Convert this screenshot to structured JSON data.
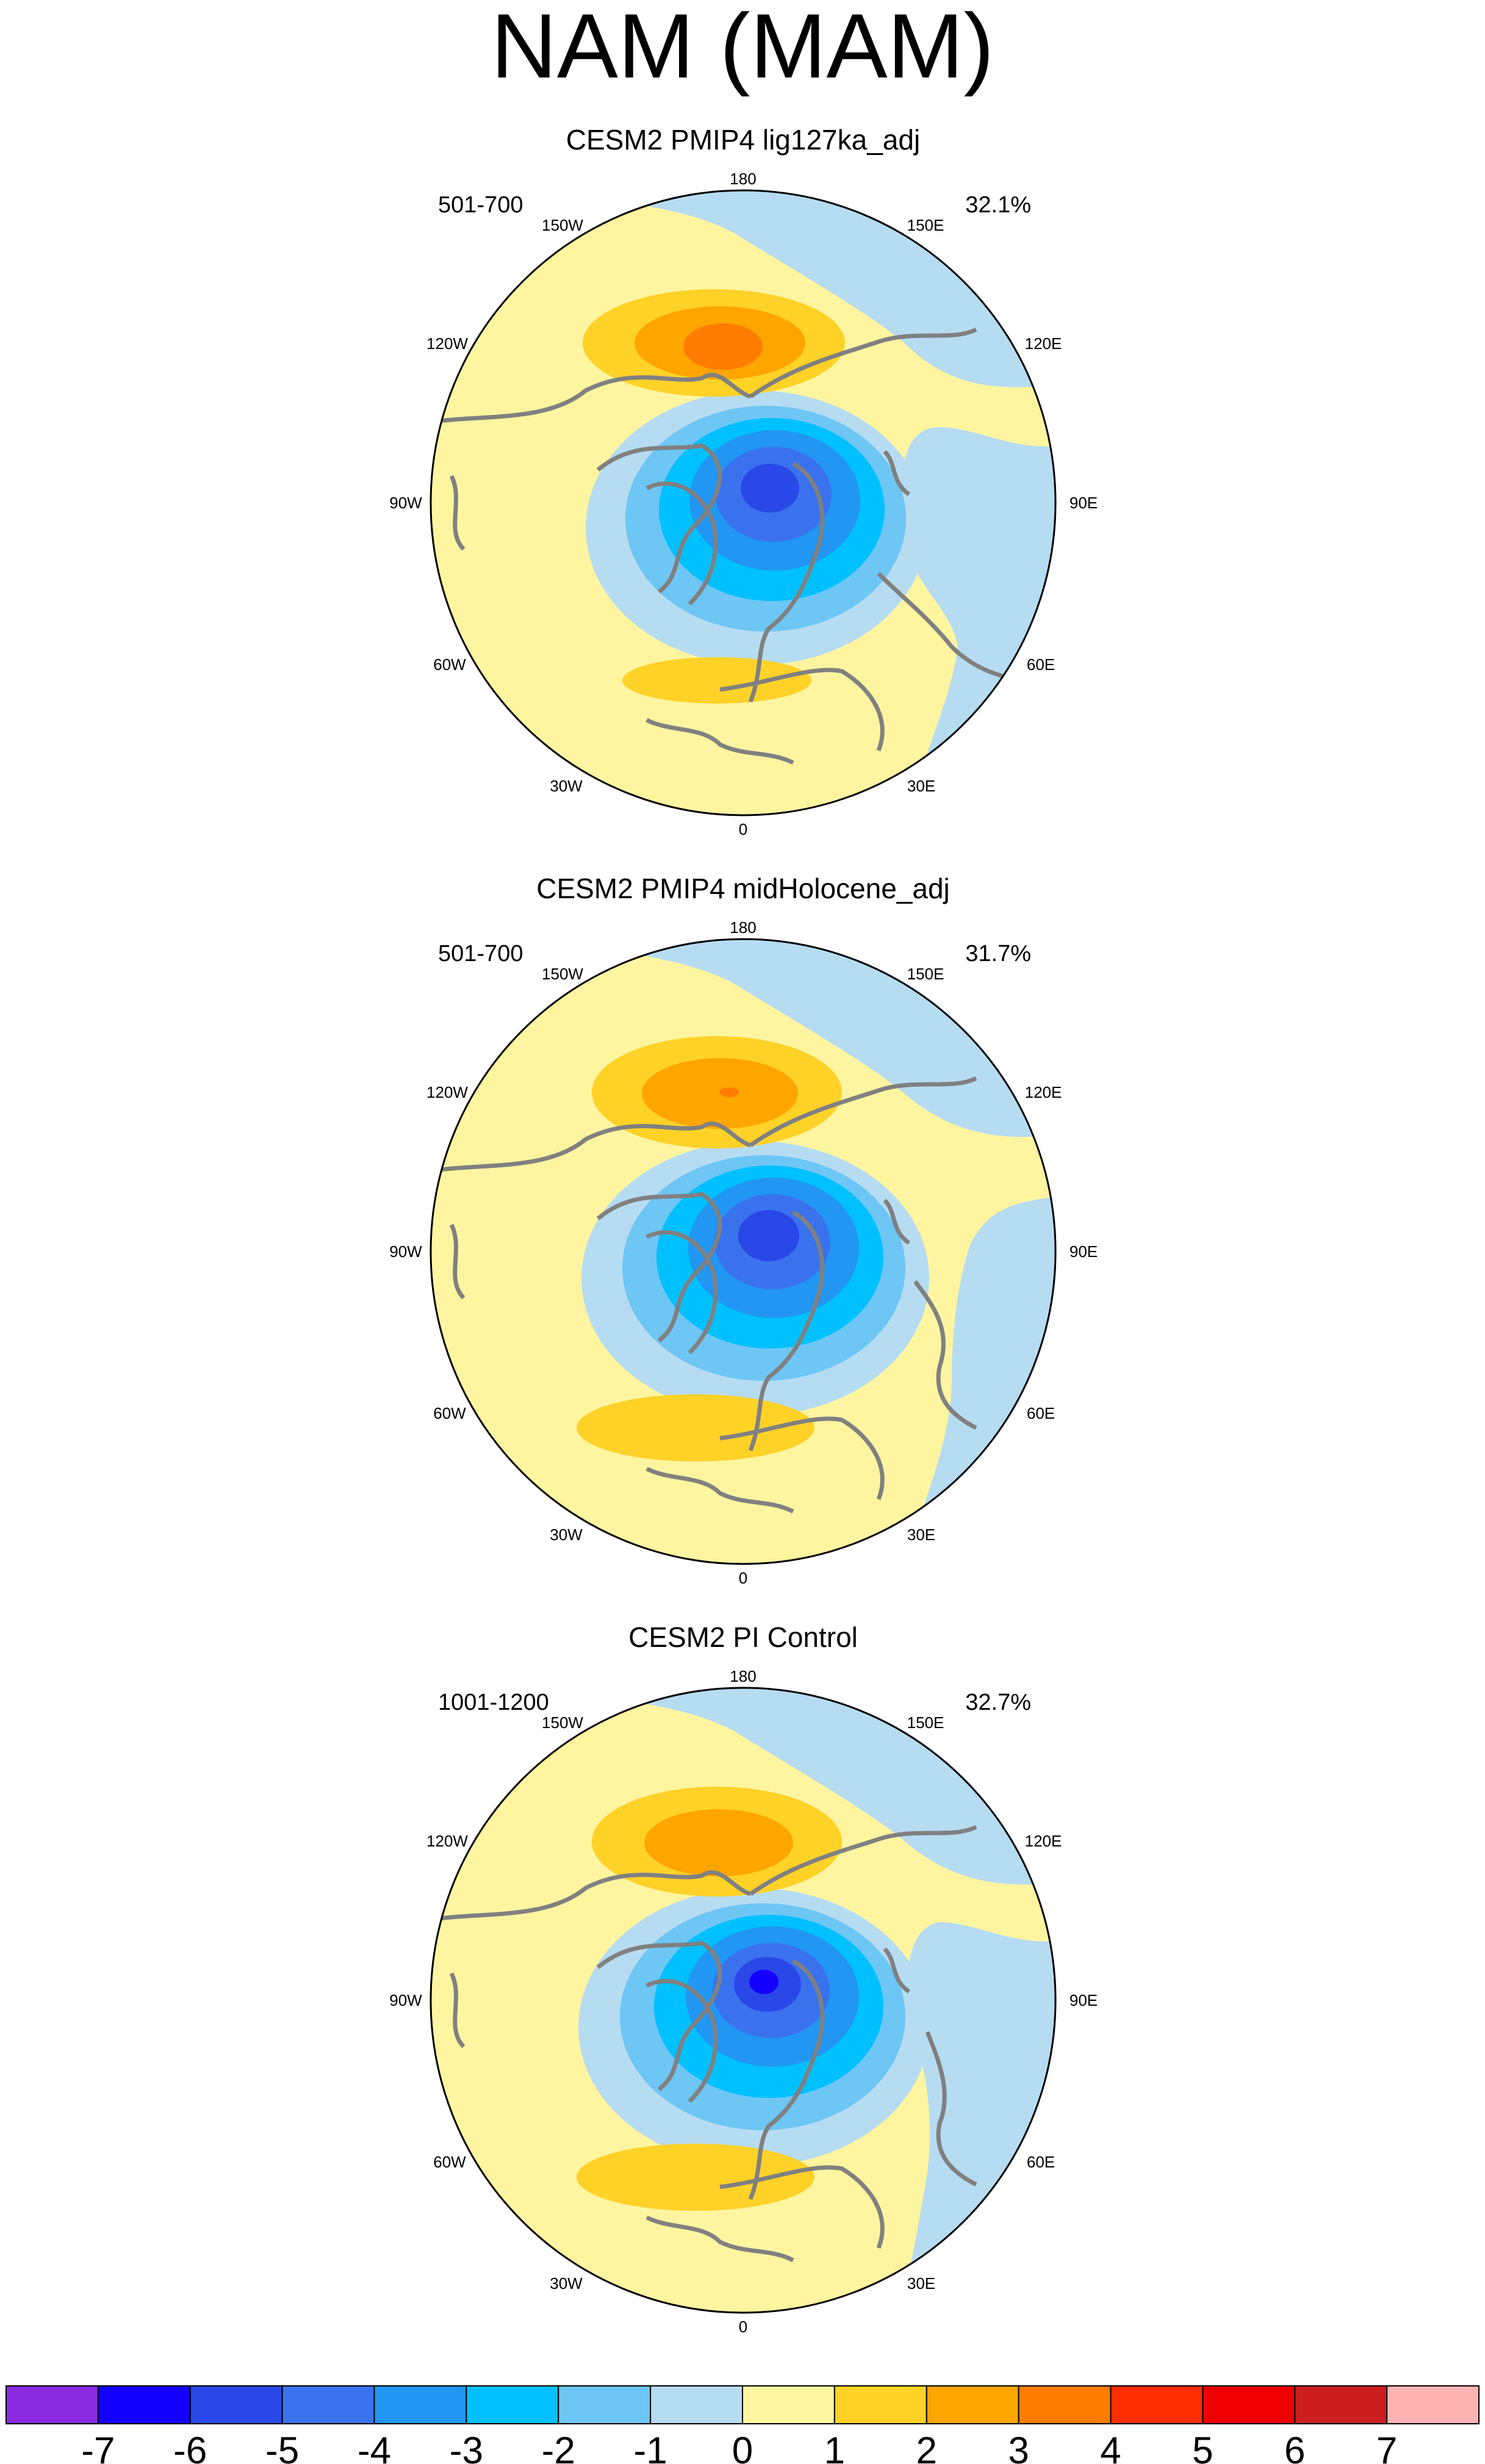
{
  "title": "NAM (MAM)",
  "panels": [
    {
      "title": "CESM2 PMIP4 lig127ka_adj",
      "years": "501-700",
      "percent": "32.1%"
    },
    {
      "title": "CESM2 PMIP4 midHolocene_adj",
      "years": "501-700",
      "percent": "31.7%"
    },
    {
      "title": "CESM2 PI Control",
      "years": "1001-1200",
      "percent": "32.7%"
    }
  ],
  "lon_labels": {
    "top": "180",
    "bottom": "0",
    "w150": "150W",
    "w120": "120W",
    "w90": "90W",
    "w60": "60W",
    "w30": "30W",
    "e150": "150E",
    "e120": "120E",
    "e90": "90E",
    "e60": "60E",
    "e30": "30E"
  },
  "colorbar": {
    "labels": [
      "-7",
      "-6",
      "-5",
      "-4",
      "-3",
      "-2",
      "-1",
      "0",
      "1",
      "2",
      "3",
      "4",
      "5",
      "6",
      "7"
    ],
    "colors": [
      "#8a2be2",
      "#1400ff",
      "#2a47e8",
      "#3a72ee",
      "#2196f3",
      "#00c0ff",
      "#6ec6f4",
      "#b6dcf2",
      "#fff5a0",
      "#ffd228",
      "#ffa500",
      "#ff7c00",
      "#ff2e00",
      "#ee0000",
      "#cc1e1e",
      "#ffb4b4"
    ]
  }
}
